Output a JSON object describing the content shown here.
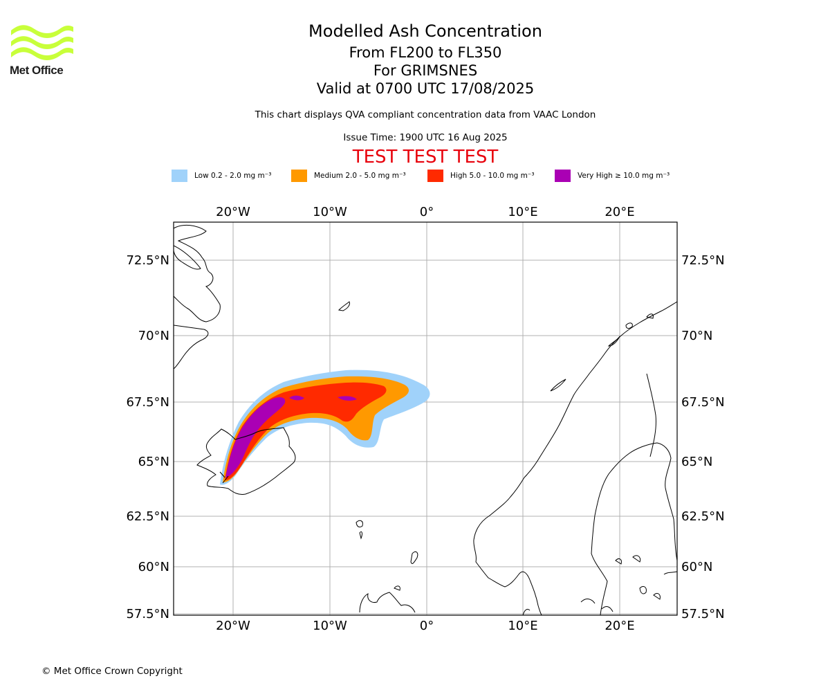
{
  "logo": {
    "text": "Met Office",
    "color": "#c8ff3a"
  },
  "titles": {
    "main": "Modelled Ash Concentration",
    "levels": "From FL200 to FL350",
    "volcano": "For GRIMSNES",
    "valid": "Valid at 0700 UTC 17/08/2025"
  },
  "subtitle": "This chart displays QVA compliant concentration data from VAAC London",
  "issue_time": "Issue Time: 1900 UTC 16 Aug 2025",
  "test_banner": "TEST TEST TEST",
  "legend": [
    {
      "label": "Low 0.2 - 2.0 mg m⁻³",
      "color": "#a0d2fa"
    },
    {
      "label": "Medium 2.0 - 5.0 mg m⁻³",
      "color": "#ff9900"
    },
    {
      "label": "High 5.0 - 10.0 mg m⁻³",
      "color": "#ff2a00"
    },
    {
      "label": "Very High ≥ 10.0 mg m⁻³",
      "color": "#aa00b4"
    }
  ],
  "axes": {
    "lon_ticks": [
      "20°W",
      "10°W",
      "0°",
      "10°E",
      "20°E"
    ],
    "lat_ticks": [
      "72.5°N",
      "70°N",
      "67.5°N",
      "65°N",
      "62.5°N",
      "60°N",
      "57.5°N"
    ]
  },
  "copyright": "© Met Office Crown Copyright"
}
